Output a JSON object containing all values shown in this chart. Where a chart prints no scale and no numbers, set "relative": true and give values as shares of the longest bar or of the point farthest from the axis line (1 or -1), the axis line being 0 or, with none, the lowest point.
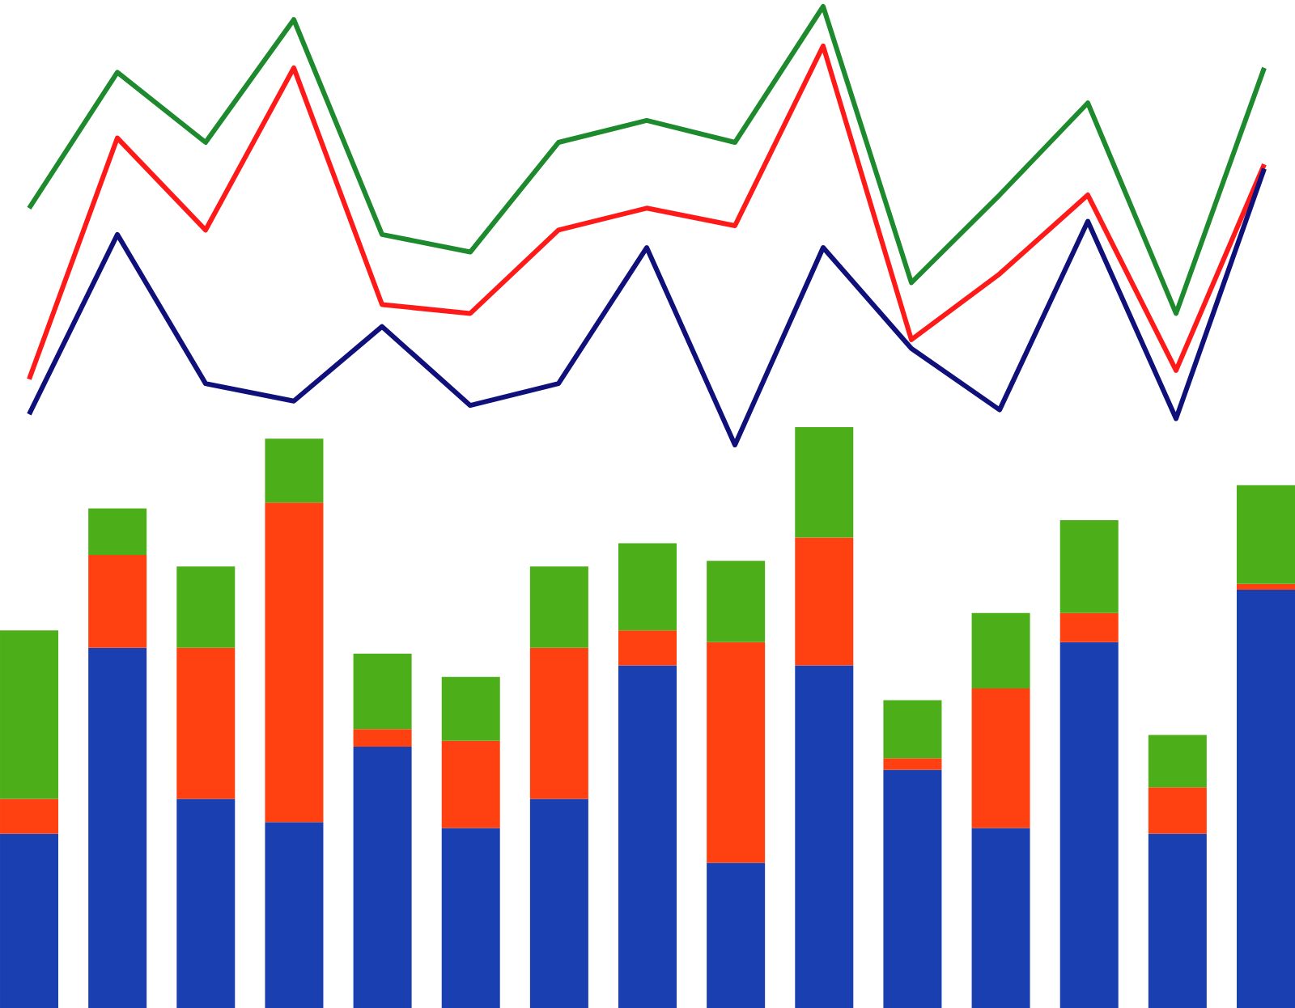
{
  "chart_data": [
    {
      "type": "line",
      "relative": true,
      "categories": [
        null,
        null,
        null,
        null,
        null,
        null,
        null,
        null,
        null,
        null,
        null,
        null,
        null,
        null,
        null
      ],
      "series": [
        {
          "color": "#1e8a2e",
          "values": [
            0.54,
            0.85,
            0.69,
            0.97,
            0.48,
            0.44,
            0.69,
            0.74,
            0.69,
            1.0,
            0.37,
            0.57,
            0.78,
            0.3,
            0.86
          ]
        },
        {
          "color": "#ff1a1a",
          "values": [
            0.15,
            0.7,
            0.49,
            0.86,
            0.32,
            0.3,
            0.49,
            0.54,
            0.5,
            0.91,
            0.24,
            0.39,
            0.57,
            0.17,
            0.64
          ]
        },
        {
          "color": "#10107a",
          "values": [
            0.07,
            0.48,
            0.14,
            0.1,
            0.27,
            0.09,
            0.14,
            0.45,
            0.0,
            0.45,
            0.22,
            0.08,
            0.51,
            0.06,
            0.63
          ]
        }
      ]
    },
    {
      "type": "bar",
      "relative": true,
      "stacked": true,
      "categories": [
        null,
        null,
        null,
        null,
        null,
        null,
        null,
        null,
        null,
        null,
        null,
        null,
        null,
        null,
        null
      ],
      "series": [
        {
          "color": "#1a3fb0",
          "values": [
            0.3,
            0.62,
            0.36,
            0.32,
            0.45,
            0.31,
            0.36,
            0.59,
            0.25,
            0.59,
            0.41,
            0.31,
            0.63,
            0.3,
            0.72
          ]
        },
        {
          "color": "#ff4010",
          "values": [
            0.06,
            0.16,
            0.26,
            0.55,
            0.03,
            0.15,
            0.26,
            0.06,
            0.38,
            0.22,
            0.02,
            0.24,
            0.05,
            0.08,
            0.01
          ]
        },
        {
          "color": "#4caf1a",
          "values": [
            0.29,
            0.08,
            0.14,
            0.11,
            0.13,
            0.11,
            0.14,
            0.15,
            0.14,
            0.19,
            0.1,
            0.13,
            0.16,
            0.09,
            0.17
          ]
        }
      ]
    }
  ]
}
